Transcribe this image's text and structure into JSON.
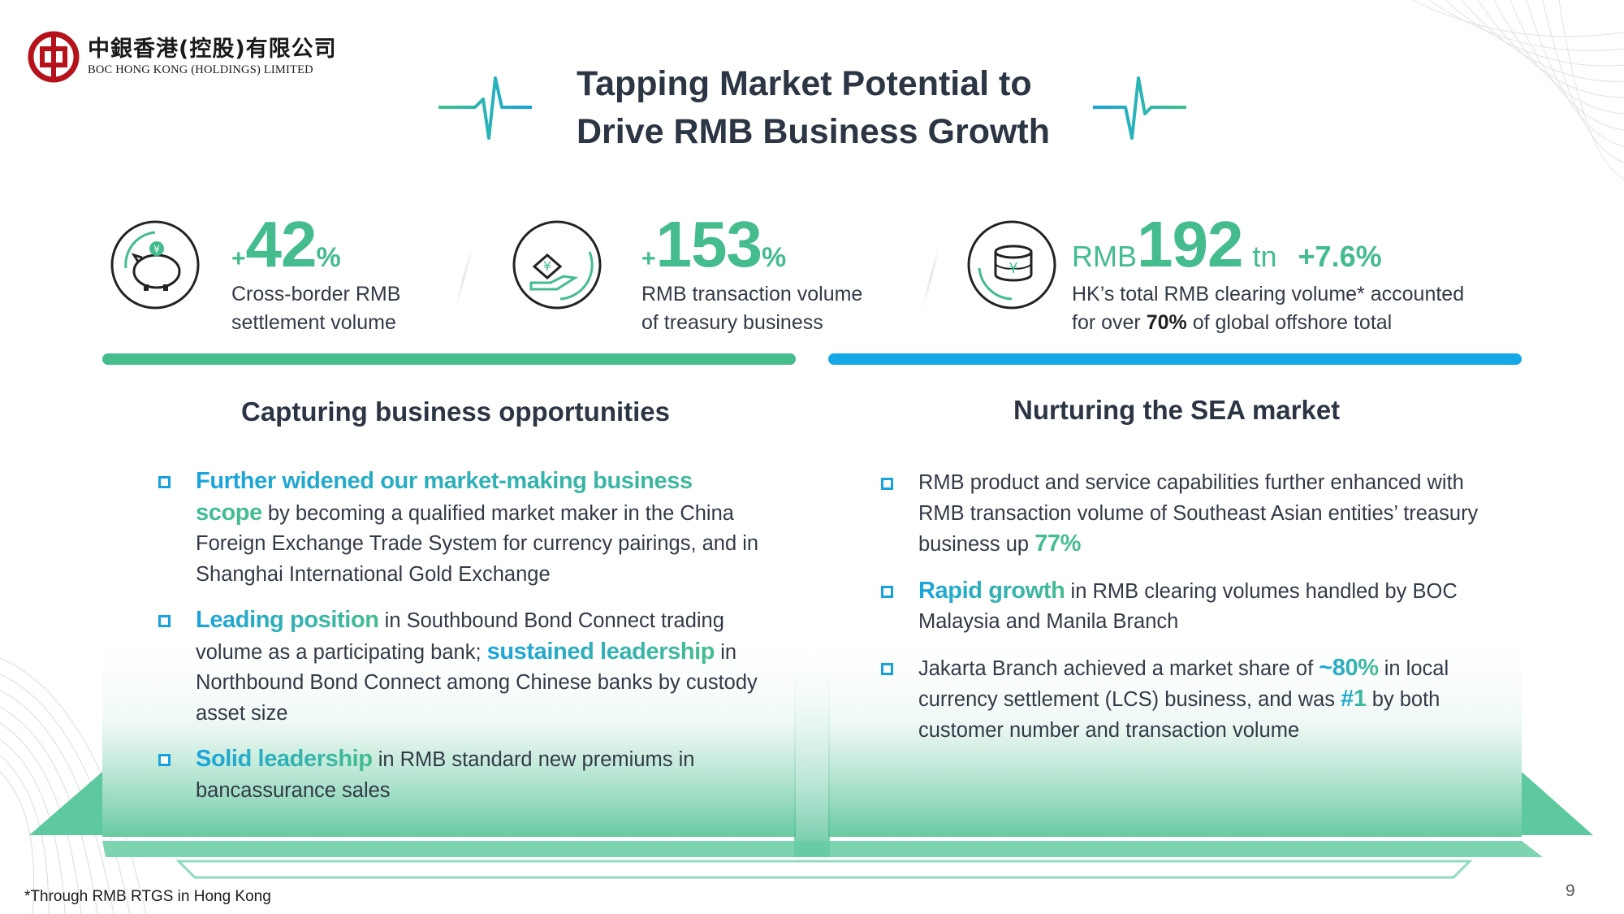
{
  "company": {
    "name_cn": "中銀香港(控股)有限公司",
    "name_en": "BOC HONG KONG (HOLDINGS) LIMITED"
  },
  "title": {
    "line1": "Tapping Market Potential to",
    "line2": "Drive RMB Business Growth"
  },
  "stats": [
    {
      "icon": "piggy-bank-yuan-icon",
      "prefix": "+",
      "value": "42",
      "suffix": "%",
      "desc_line1": "Cross-border RMB",
      "desc_line2": "settlement volume"
    },
    {
      "icon": "hand-yuan-coin-icon",
      "prefix": "+",
      "value": "153",
      "suffix": "%",
      "desc_line1": "RMB transaction volume",
      "desc_line2": "of treasury business"
    },
    {
      "icon": "coin-stack-yuan-icon",
      "prefix": "RMB",
      "value": "192",
      "suffix": "tn",
      "growth": "+7.6%",
      "desc_line1": "HK’s total RMB clearing volume* accounted",
      "desc_line2_pre": "for over ",
      "desc_line2_bold": "70%",
      "desc_line2_post": " of global offshore total"
    }
  ],
  "left_section": {
    "title": "Capturing business opportunities",
    "bullets": [
      {
        "hl": "Further widened our market-making business scope",
        "text": " by becoming a qualified market maker in the China Foreign Exchange Trade System for currency pairings, and in Shanghai International Gold Exchange"
      },
      {
        "hl": "Leading position",
        "text1": " in Southbound Bond Connect trading volume as a participating bank; ",
        "hl2": "sustained leadership",
        "text2": " in Northbound Bond Connect among Chinese banks by custody asset size"
      },
      {
        "hl": "Solid leadership",
        "text": " in RMB standard new premiums in bancassurance sales"
      }
    ]
  },
  "right_section": {
    "title": "Nurturing the SEA market",
    "bullets": [
      {
        "text": "RMB product and service capabilities further enhanced with RMB transaction volume of Southeast Asian entities’ treasury business up ",
        "hl": "77%"
      },
      {
        "hl": "Rapid growth",
        "text": " in RMB clearing volumes handled by BOC Malaysia and Manila Branch"
      },
      {
        "text1": "Jakarta Branch achieved a market share of ",
        "hl1": "~80%",
        "text2": " in local currency settlement (LCS) business, and was ",
        "hl2": "#1",
        "text3": " by both customer number and transaction volume"
      }
    ]
  },
  "footnote": "*Through RMB RTGS in Hong Kong",
  "page_number": "9",
  "colors": {
    "accent_green": "#45bd8f",
    "accent_blue": "#14a8e6",
    "title_dark": "#2b3544",
    "logo_red": "#b5121b"
  }
}
